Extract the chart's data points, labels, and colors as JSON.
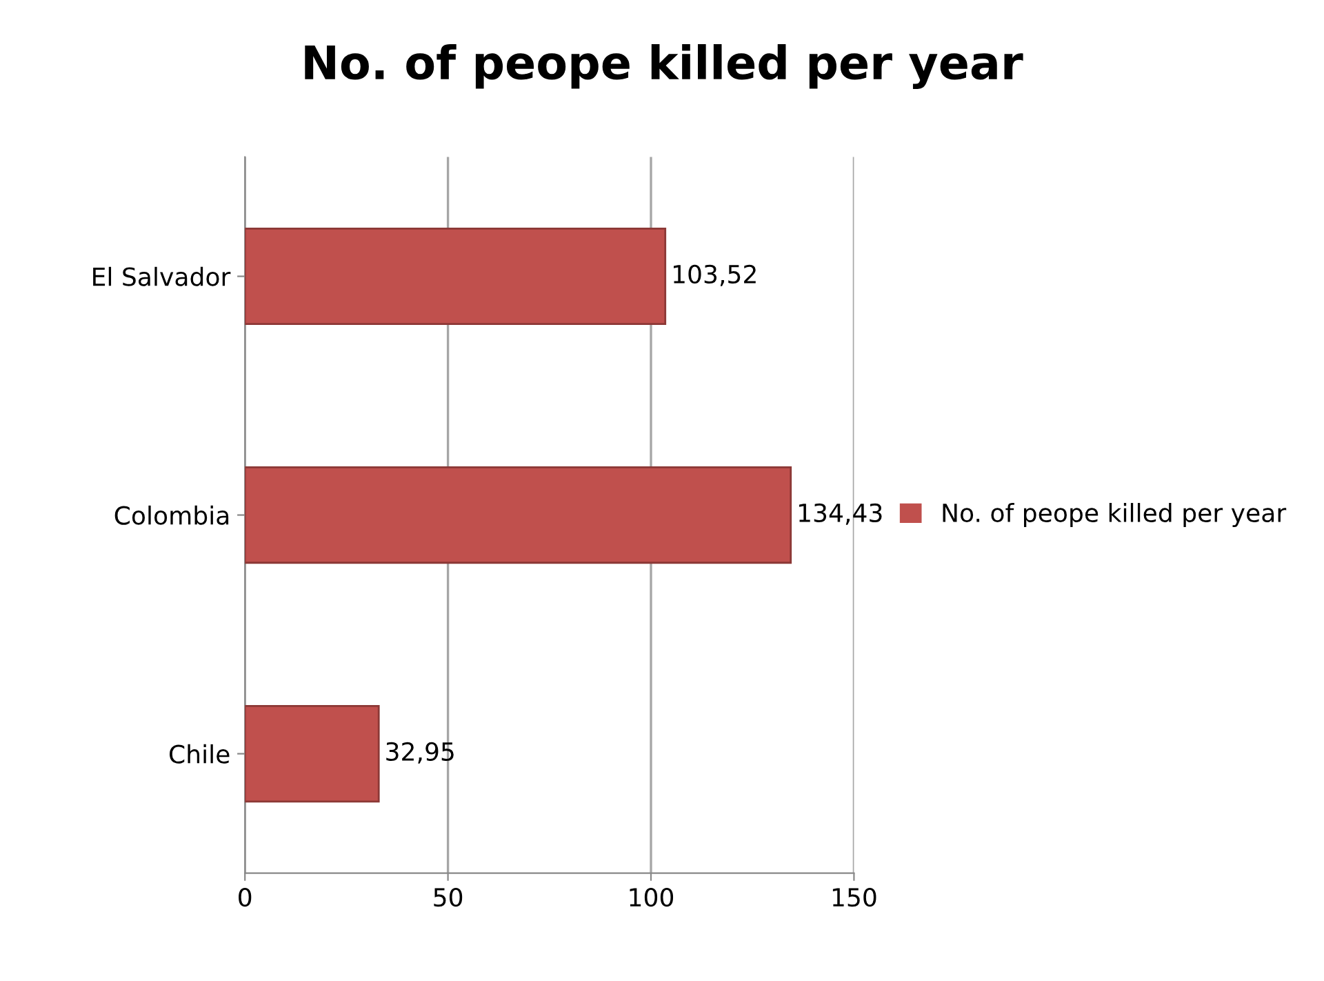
{
  "chart_data": {
    "type": "bar",
    "orientation": "horizontal",
    "title": "No. of peope killed per year",
    "categories": [
      "El Salvador",
      "Colombia",
      "Chile"
    ],
    "series": [
      {
        "name": "No. of peope killed per year",
        "color": "#c0504d",
        "values": [
          103.52,
          134.43,
          32.95
        ],
        "value_labels": [
          "103,52",
          "134,43",
          "32,95"
        ]
      }
    ],
    "xlim": [
      0,
      150
    ],
    "xticks": [
      0,
      50,
      100,
      150
    ],
    "grid": "x",
    "legend": "right"
  }
}
